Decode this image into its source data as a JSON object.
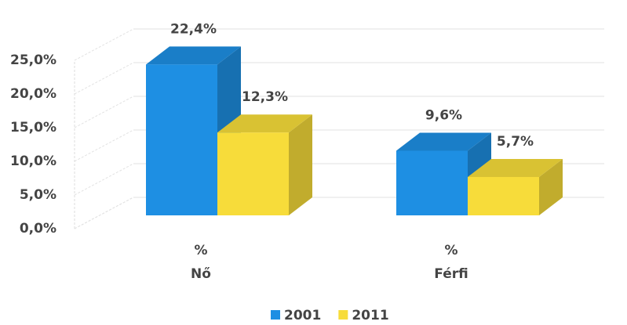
{
  "chart_data": {
    "type": "bar3d",
    "categories": [
      [
        "%",
        "Nő"
      ],
      [
        "%",
        "Férfi"
      ]
    ],
    "series": [
      {
        "name": "2001",
        "color": "#1e8fe3",
        "values": [
          22.4,
          9.6
        ],
        "value_labels": [
          "22,4%",
          "9,6%"
        ]
      },
      {
        "name": "2011",
        "color": "#f7dc3a",
        "values": [
          12.3,
          5.7
        ],
        "value_labels": [
          "12,3%",
          "5,7%"
        ]
      }
    ],
    "ylim": [
      0,
      25
    ],
    "yticks": [
      {
        "value": 0,
        "label": "0,0%"
      },
      {
        "value": 5,
        "label": "5,0%"
      },
      {
        "value": 10,
        "label": "10,0%"
      },
      {
        "value": 15,
        "label": "15,0%"
      },
      {
        "value": 20,
        "label": "20,0%"
      },
      {
        "value": 25,
        "label": "25,0%"
      }
    ],
    "grid": true,
    "legend": "bottom"
  }
}
